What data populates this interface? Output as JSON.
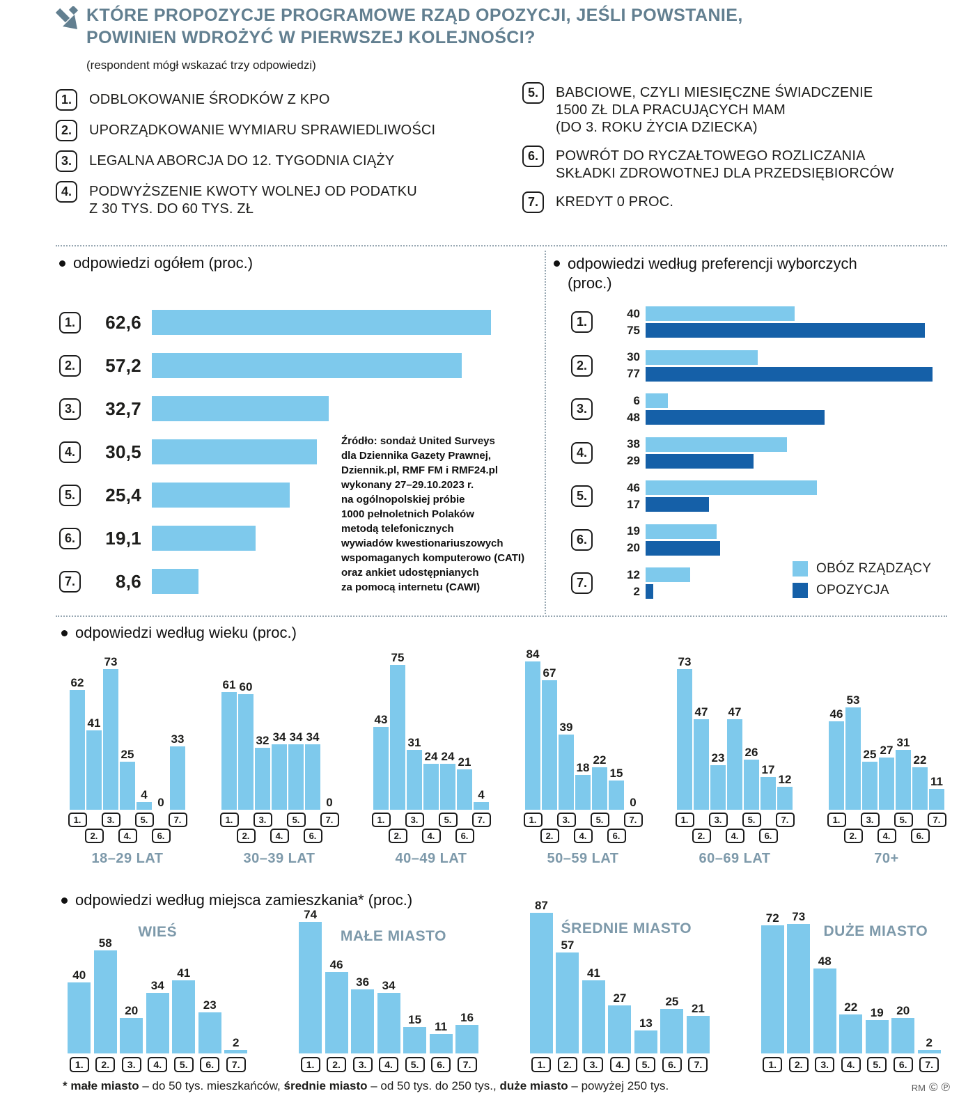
{
  "header": {
    "title": "KTÓRE PROPOZYCJE PROGRAMOWE RZĄD OPOZYCJI, JEŚLI POWSTANIE,\nPOWINIEN WDROŻYĆ W PIERWSZEJ KOLEJNOŚCI?",
    "subtitle": "(respondent mógł wskazać trzy odpowiedzi)"
  },
  "answers": {
    "left": [
      {
        "num": "1.",
        "text": "ODBLOKOWANIE ŚRODKÓW Z KPO"
      },
      {
        "num": "2.",
        "text": "UPORZĄDKOWANIE WYMIARU SPRAWIEDLIWOŚCI"
      },
      {
        "num": "3.",
        "text": "LEGALNA ABORCJA DO 12. TYGODNIA CIĄŻY"
      },
      {
        "num": "4.",
        "text": "PODWYŻSZENIE KWOTY WOLNEJ OD PODATKU\nZ 30 TYS. DO 60 TYS. ZŁ"
      }
    ],
    "right": [
      {
        "num": "5.",
        "text": "BABCIOWE, CZYLI MIESIĘCZNE ŚWIADCZENIE\n1500 ZŁ DLA PRACUJĄCYCH MAM\n(DO 3. ROKU ŻYCIA DZIECKA)"
      },
      {
        "num": "6.",
        "text": "POWRÓT DO RYCZAŁTOWEGO ROZLICZANIA\nSKŁADKI ZDROWOTNEJ DLA PRZEDSIĘBIORCÓW"
      },
      {
        "num": "7.",
        "text": "KREDYT 0 PROC."
      }
    ]
  },
  "source": "Źródło: sondaż United Surveys\ndla Dziennika Gazety Prawnej,\nDziennik.pl, RMF FM i RMF24.pl\nwykonany 27–29.10.2023 r.\nna ogólnopolskiej próbie\n1000 pełnoletnich Polaków\nmetodą telefonicznych\nwywiadów kwestionariuszowych\nwspomaganych komputerowo (CATI)\noraz ankiet udostępnianych\nza pomocą internetu (CAWI)",
  "colors": {
    "light_blue": "#7ec9ec",
    "dark_blue": "#1560a8",
    "heading": "#627f90",
    "group_label": "#7d99aa"
  },
  "chart_data": [
    {
      "id": "overall",
      "type": "bar",
      "orientation": "horizontal",
      "title": "odpowiedzi ogółem (proc.)",
      "categories": [
        "1.",
        "2.",
        "3.",
        "4.",
        "5.",
        "6.",
        "7."
      ],
      "values": [
        62.6,
        57.2,
        32.7,
        30.5,
        25.4,
        19.1,
        8.6
      ],
      "labels": [
        "62,6",
        "57,2",
        "32,7",
        "30,5",
        "25,4",
        "19,1",
        "8,6"
      ],
      "xlim": [
        0,
        65
      ],
      "unit": "proc."
    },
    {
      "id": "preferences",
      "type": "bar",
      "orientation": "horizontal",
      "title": "odpowiedzi według preferencji wyborczych (proc.)",
      "categories": [
        "1.",
        "2.",
        "3.",
        "4.",
        "5.",
        "6.",
        "7."
      ],
      "series": [
        {
          "name": "OBÓZ RZĄDZĄCY",
          "values": [
            40,
            30,
            6,
            38,
            46,
            19,
            12
          ]
        },
        {
          "name": "OPOZYCJA",
          "values": [
            75,
            77,
            48,
            29,
            17,
            20,
            2
          ]
        }
      ],
      "xlim": [
        0,
        80
      ],
      "legend_position": "bottom-right",
      "unit": "proc."
    },
    {
      "id": "age",
      "type": "bar",
      "orientation": "vertical",
      "title": "odpowiedzi według wieku (proc.)",
      "categories": [
        "1.",
        "2.",
        "3.",
        "4.",
        "5.",
        "6.",
        "7."
      ],
      "groups": [
        {
          "label": "18–29 LAT",
          "values": [
            62,
            41,
            73,
            25,
            4,
            0,
            33
          ]
        },
        {
          "label": "30–39 LAT",
          "values": [
            61,
            60,
            32,
            34,
            34,
            34,
            0
          ]
        },
        {
          "label": "40–49 LAT",
          "values": [
            43,
            75,
            31,
            24,
            24,
            21,
            4
          ]
        },
        {
          "label": "50–59 LAT",
          "values": [
            84,
            67,
            39,
            18,
            22,
            15,
            0
          ]
        },
        {
          "label": "60–69 LAT",
          "values": [
            73,
            47,
            23,
            47,
            26,
            17,
            12
          ]
        },
        {
          "label": "70+",
          "values": [
            46,
            53,
            25,
            27,
            31,
            22,
            11
          ]
        }
      ],
      "ylim": [
        0,
        90
      ],
      "unit": "proc."
    },
    {
      "id": "residence",
      "type": "bar",
      "orientation": "vertical",
      "title": "odpowiedzi według miejsca zamieszkania* (proc.)",
      "categories": [
        "1.",
        "2.",
        "3.",
        "4.",
        "5.",
        "6.",
        "7."
      ],
      "groups": [
        {
          "label": "WIEŚ",
          "values": [
            40,
            58,
            20,
            34,
            41,
            23,
            2
          ]
        },
        {
          "label": "MAŁE MIASTO",
          "values": [
            74,
            46,
            36,
            34,
            15,
            11,
            16
          ]
        },
        {
          "label": "ŚREDNIE MIASTO",
          "values": [
            87,
            57,
            41,
            27,
            13,
            25,
            21
          ]
        },
        {
          "label": "DUŻE MIASTO",
          "values": [
            72,
            73,
            48,
            22,
            19,
            20,
            2
          ]
        }
      ],
      "ylim": [
        0,
        90
      ],
      "unit": "proc."
    }
  ],
  "footer": {
    "segments": [
      {
        "text": "* małe miasto",
        "bold": true
      },
      {
        "text": " – do 50 tys. mieszkańców, ",
        "bold": false
      },
      {
        "text": "średnie miasto",
        "bold": true
      },
      {
        "text": " – od 50 tys. do 250 tys., ",
        "bold": false
      },
      {
        "text": "duże miasto",
        "bold": true
      },
      {
        "text": " – powyżej 250 tys.",
        "bold": false
      }
    ],
    "credit": "RM",
    "copyright_symbol": "©",
    "phonogram_symbol": "℗"
  }
}
